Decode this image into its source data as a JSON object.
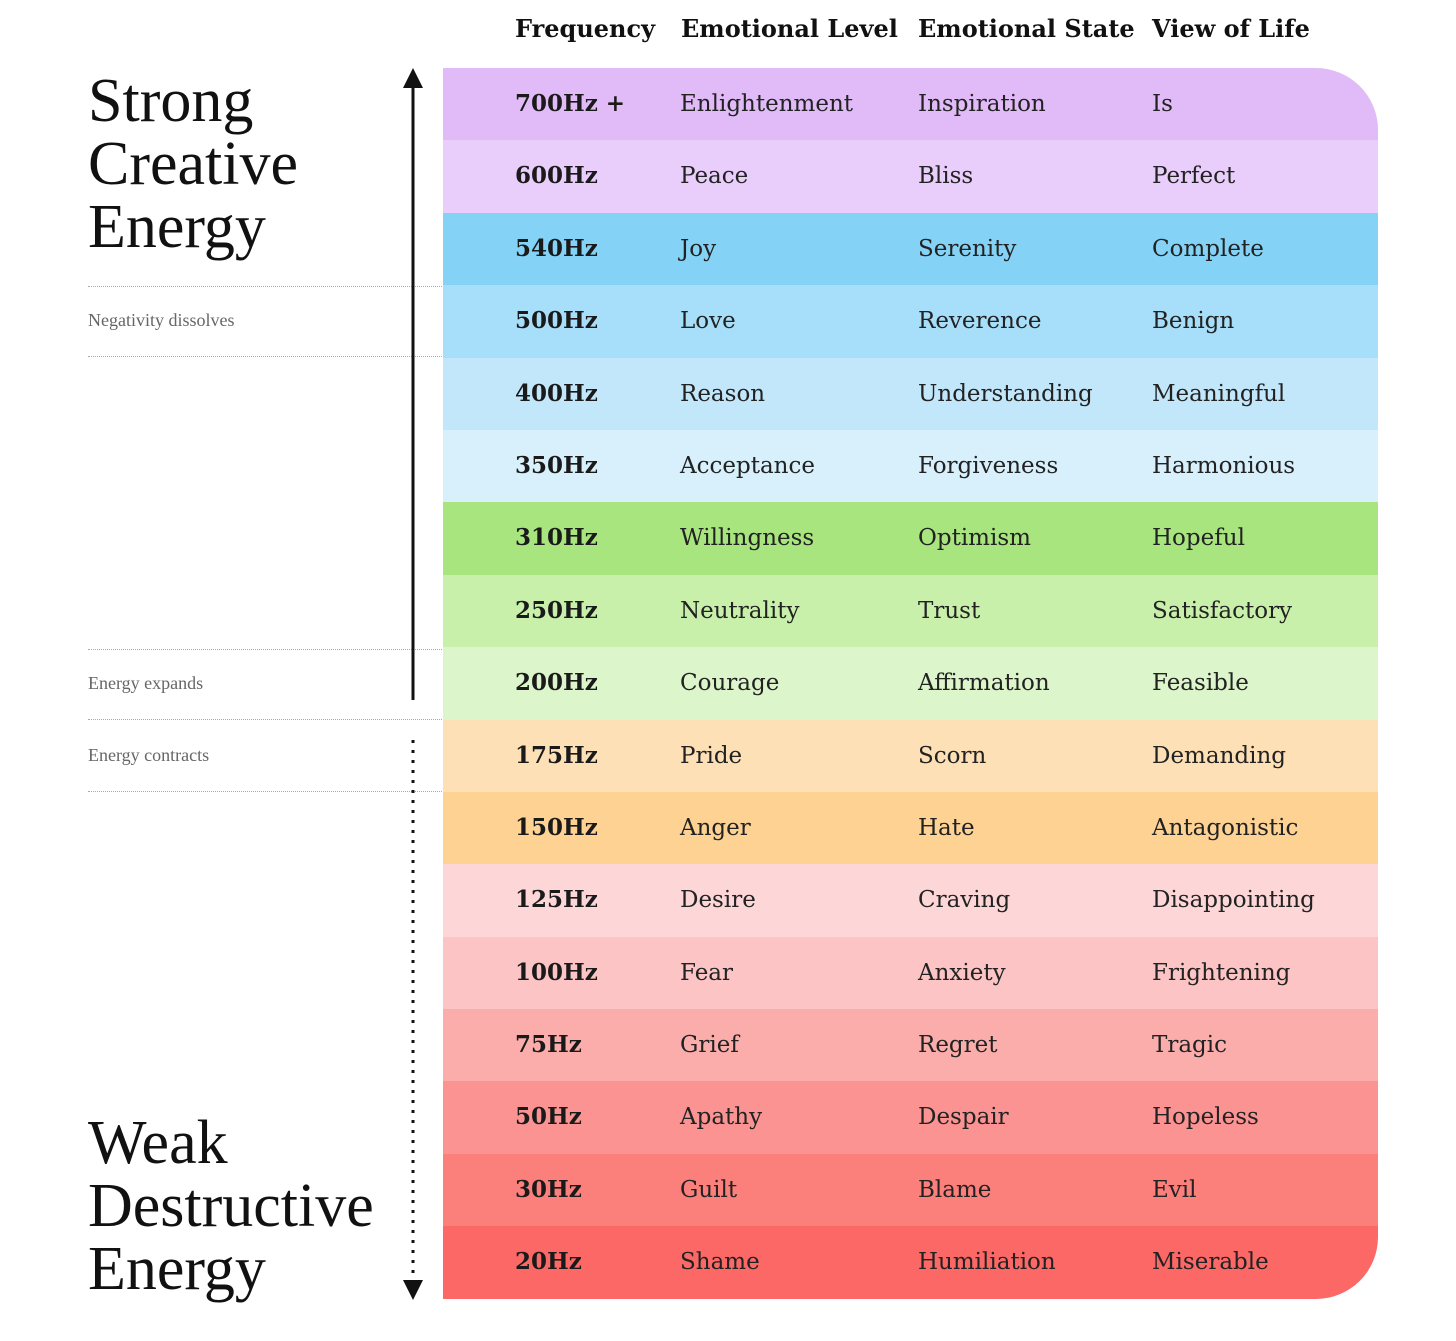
{
  "headers": {
    "frequency": "Frequency",
    "emotional_level": "Emotional Level",
    "emotional_state": "Emotional State",
    "view_of_life": "View of Life"
  },
  "strong_title": [
    "Strong",
    "Creative",
    "Energy"
  ],
  "weak_title": [
    "Weak",
    "Destructive",
    "Energy"
  ],
  "notes": {
    "negativity_dissolves": "Negativity dissolves",
    "energy_expands": "Energy expands",
    "energy_contracts": "Energy contracts"
  },
  "rows": [
    {
      "frequency": "700Hz +",
      "level": "Enlightenment",
      "state": "Inspiration",
      "view": "Is",
      "color": "#e0bbf7"
    },
    {
      "frequency": "600Hz",
      "level": "Peace",
      "state": "Bliss",
      "view": "Perfect",
      "color": "#e9cdfb"
    },
    {
      "frequency": "540Hz",
      "level": "Joy",
      "state": "Serenity",
      "view": "Complete",
      "color": "#84d3f6"
    },
    {
      "frequency": "500Hz",
      "level": "Love",
      "state": "Reverence",
      "view": "Benign",
      "color": "#a7def9"
    },
    {
      "frequency": "400Hz",
      "level": "Reason",
      "state": "Understanding",
      "view": "Meaningful",
      "color": "#c2e7fb"
    },
    {
      "frequency": "350Hz",
      "level": "Acceptance",
      "state": "Forgiveness",
      "view": "Harmonious",
      "color": "#d7f0fc"
    },
    {
      "frequency": "310Hz",
      "level": "Willingness",
      "state": "Optimism",
      "view": "Hopeful",
      "color": "#a8e57f"
    },
    {
      "frequency": "250Hz",
      "level": "Neutrality",
      "state": "Trust",
      "view": "Satisfactory",
      "color": "#c8f0ab"
    },
    {
      "frequency": "200Hz",
      "level": "Courage",
      "state": "Affirmation",
      "view": "Feasible",
      "color": "#dcf5ca"
    },
    {
      "frequency": "175Hz",
      "level": "Pride",
      "state": "Scorn",
      "view": "Demanding",
      "color": "#fde0b5"
    },
    {
      "frequency": "150Hz",
      "level": "Anger",
      "state": "Hate",
      "view": "Antagonistic",
      "color": "#fdd293"
    },
    {
      "frequency": "125Hz",
      "level": "Desire",
      "state": "Craving",
      "view": "Disappointing",
      "color": "#fdd6d8"
    },
    {
      "frequency": "100Hz",
      "level": "Fear",
      "state": "Anxiety",
      "view": "Frightening",
      "color": "#fcc4c4"
    },
    {
      "frequency": "75Hz",
      "level": "Grief",
      "state": "Regret",
      "view": "Tragic",
      "color": "#fbadab"
    },
    {
      "frequency": "50Hz",
      "level": "Apathy",
      "state": "Despair",
      "view": "Hopeless",
      "color": "#fb9393"
    },
    {
      "frequency": "30Hz",
      "level": "Guilt",
      "state": "Blame",
      "view": "Evil",
      "color": "#fb7f7b"
    },
    {
      "frequency": "20Hz",
      "level": "Shame",
      "state": "Humiliation",
      "view": "Miserable",
      "color": "#fb6866"
    }
  ]
}
